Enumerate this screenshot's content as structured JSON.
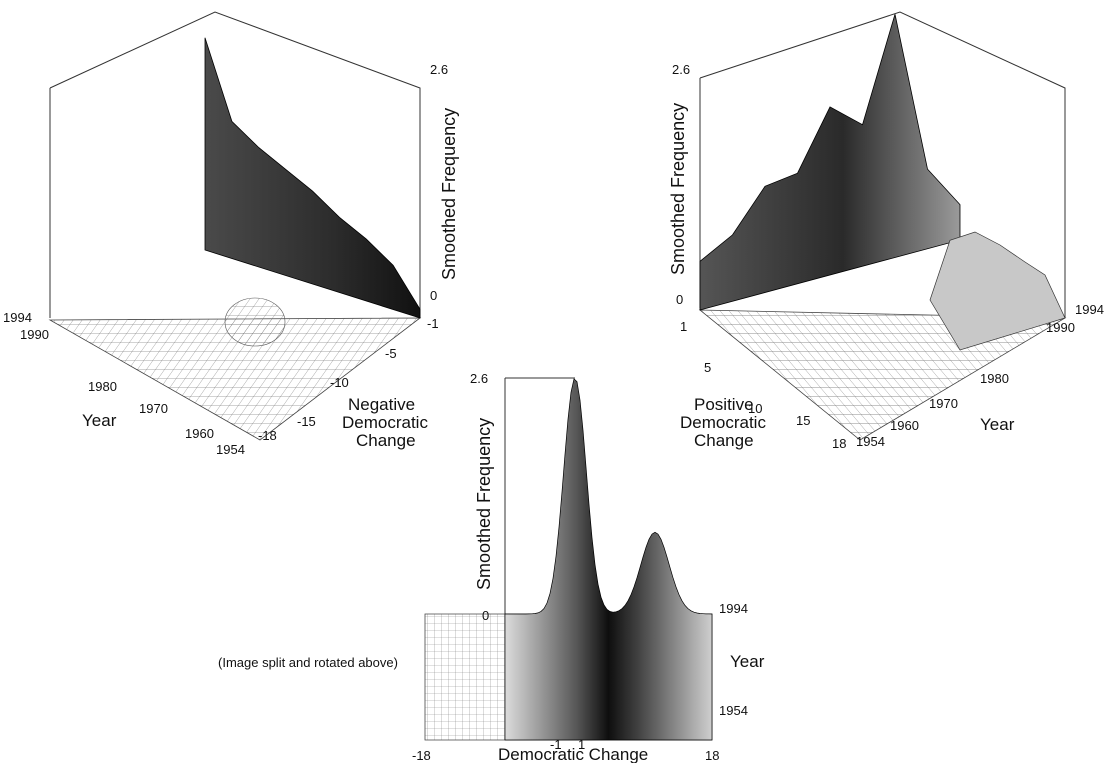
{
  "chart_data": [
    {
      "type": "surface3d",
      "title": "",
      "zlabel": "Smoothed Frequency",
      "zlim": [
        0,
        2.6
      ],
      "z_ticks": [
        "2.6",
        "0"
      ],
      "xlabel": [
        "Negative",
        "Democratic",
        "Change"
      ],
      "x_ticks": [
        "-1",
        "-5",
        "-10",
        "-15",
        "-18"
      ],
      "ylabel": "Year",
      "y_ticks": [
        "1994",
        "1990",
        "1980",
        "1970",
        "1960",
        "1954"
      ],
      "ridge_heights": [
        2.4,
        1.55,
        1.35,
        1.2,
        1.05,
        0.85,
        0.7,
        0.5,
        0.1
      ],
      "secondary_peak_height": 0.35
    },
    {
      "type": "surface3d",
      "title": "",
      "zlabel": "Smoothed Frequency",
      "zlim": [
        0,
        2.6
      ],
      "z_ticks": [
        "2.6",
        "0"
      ],
      "xlabel": [
        "Positive",
        "Democratic",
        "Change"
      ],
      "x_ticks": [
        "1",
        "5",
        "10",
        "15",
        "18"
      ],
      "ylabel": "Year",
      "y_ticks": [
        "1994",
        "1990",
        "1980",
        "1970",
        "1960",
        "1954"
      ],
      "ridge_heights": [
        0.55,
        0.75,
        1.2,
        1.25,
        1.9,
        1.6,
        2.75,
        0.9,
        0.4
      ],
      "secondary_peak_height": 0.55
    },
    {
      "type": "surface3d",
      "title": "",
      "zlabel": "Smoothed Frequency",
      "zlim": [
        0,
        2.6
      ],
      "z_ticks": [
        "2.6",
        "0"
      ],
      "xlabel": "Democratic Change",
      "x_ticks": [
        "-18",
        "-1",
        "1",
        "18"
      ],
      "ylabel": "Year",
      "y_ticks": [
        "1994",
        "1954"
      ],
      "main_peak_height": 2.6,
      "secondary_peak_height": 0.9,
      "note": "(Image split and rotated above)"
    }
  ]
}
